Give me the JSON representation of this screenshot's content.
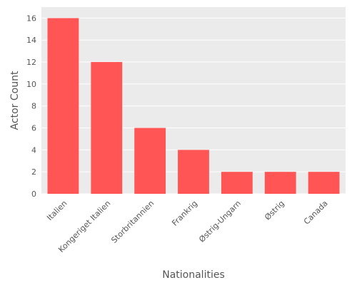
{
  "chart_data": {
    "type": "bar",
    "title": "",
    "xlabel": "Nationalities",
    "ylabel": "Actor Count",
    "categories": [
      "Italien",
      "Kongeriget Italien",
      "Storbritannien",
      "Frankrig",
      "Østrig-Ungarn",
      "Østrig",
      "Canada"
    ],
    "values": [
      16,
      12,
      6,
      4,
      2,
      2,
      2
    ],
    "ylim": [
      0,
      17
    ],
    "yticks": [
      0,
      2,
      4,
      6,
      8,
      10,
      12,
      14,
      16
    ],
    "grid": true,
    "legend": "none",
    "colors": {
      "bar": "#ff5555",
      "plot_background": "#ebebeb",
      "grid": "#ffffff",
      "text": "#555555"
    }
  }
}
